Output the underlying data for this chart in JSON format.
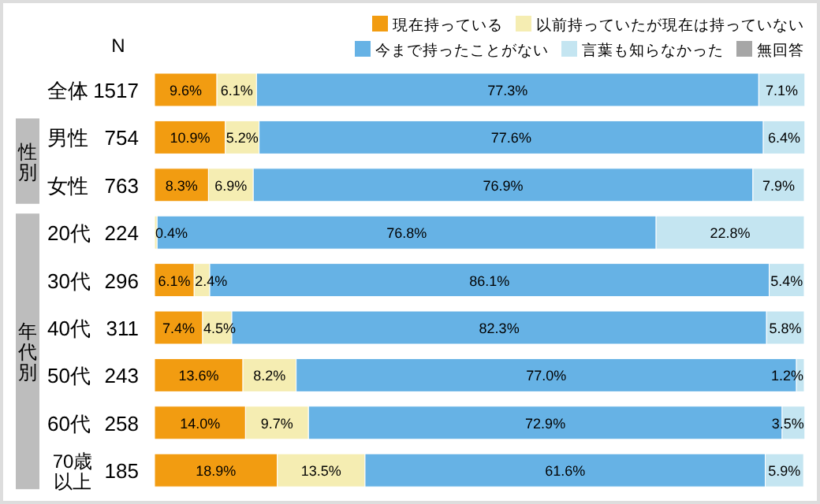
{
  "chart_data": {
    "type": "bar",
    "orientation": "horizontal",
    "stacked": true,
    "legend": "top right",
    "xlim": [
      0,
      100
    ],
    "categories": [
      "全体",
      "男性",
      "女性",
      "20代",
      "30代",
      "40代",
      "50代",
      "60代",
      "70歳以上"
    ],
    "series": [
      {
        "name": "現在持っている",
        "color": "#f29c11",
        "values": [
          9.6,
          10.9,
          8.3,
          0,
          6.1,
          7.4,
          13.6,
          14.0,
          18.9
        ],
        "value_labels": [
          "9.6%",
          "10.9%",
          "8.3%",
          null,
          "6.1%",
          "7.4%",
          "13.6%",
          "14.0%",
          "18.9%"
        ]
      },
      {
        "name": "以前持っていたが現在は持っていない",
        "color": "#f5edb2",
        "values": [
          6.1,
          5.2,
          6.9,
          0.4,
          2.4,
          4.5,
          8.2,
          9.7,
          13.5
        ],
        "value_labels": [
          "6.1%",
          "5.2%",
          "6.9%",
          "0.4%",
          "2.4%",
          "4.5%",
          "8.2%",
          "9.7%",
          "13.5%"
        ]
      },
      {
        "name": "今まで持ったことがない",
        "color": "#66b2e5",
        "values": [
          77.3,
          77.6,
          76.9,
          76.8,
          86.1,
          82.3,
          77.0,
          72.9,
          61.6
        ],
        "value_labels": [
          "77.3%",
          "77.6%",
          "76.9%",
          "76.8%",
          "86.1%",
          "82.3%",
          "77.0%",
          "72.9%",
          "61.6%"
        ]
      },
      {
        "name": "言葉も知らなかった",
        "color": "#c4e5f1",
        "values": [
          7.1,
          6.4,
          7.9,
          22.8,
          5.4,
          5.8,
          1.2,
          3.5,
          5.9
        ],
        "value_labels": [
          "7.1%",
          "6.4%",
          "7.9%",
          "22.8%",
          "5.4%",
          "5.8%",
          "1.2%",
          "3.5%",
          "5.9%"
        ]
      },
      {
        "name": "無回答",
        "color": "#a6a6a6",
        "values": [
          0,
          0,
          0,
          0,
          0,
          0,
          0,
          0,
          0
        ],
        "value_labels": [
          null,
          null,
          null,
          null,
          null,
          null,
          null,
          null,
          null
        ]
      }
    ],
    "annotations": [
      "N",
      "1517",
      "754",
      "763",
      "224",
      "296",
      "311",
      "243",
      "258",
      "185",
      "性別",
      "年代別"
    ]
  }
}
